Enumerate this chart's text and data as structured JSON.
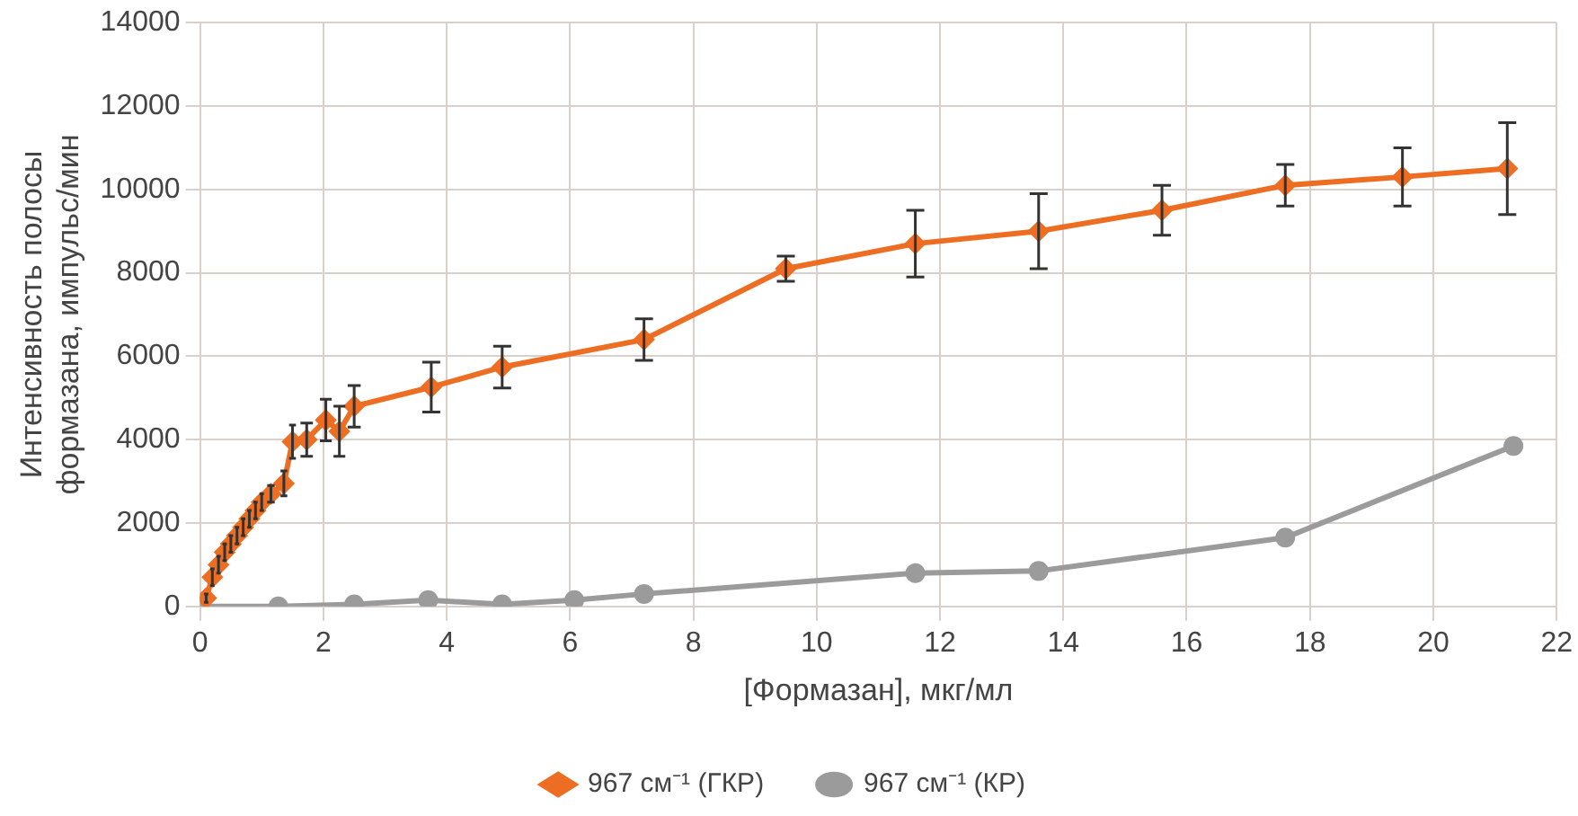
{
  "chart_data": {
    "type": "line",
    "xlabel": "[Формазан], мкг/мл",
    "ylabel": "Интенсивность полосы\nформазана, импульс/мин",
    "xlim": [
      0,
      22
    ],
    "xticks": [
      0,
      2,
      4,
      6,
      8,
      10,
      12,
      14,
      16,
      18,
      20,
      22
    ],
    "ylim": [
      0,
      14000
    ],
    "yticks": [
      0,
      2000,
      4000,
      6000,
      8000,
      10000,
      12000,
      14000
    ],
    "grid": true,
    "legend": "bottom",
    "series": [
      {
        "name": "967 см⁻¹ (ГКР)",
        "color": "#ed6d23",
        "marker": "diamond",
        "x": [
          0.1,
          0.2,
          0.3,
          0.4,
          0.5,
          0.6,
          0.7,
          0.8,
          0.9,
          1.0,
          1.15,
          1.36,
          1.5,
          1.73,
          2.04,
          2.26,
          2.5,
          3.75,
          4.9,
          7.2,
          9.5,
          11.6,
          13.6,
          15.6,
          17.6,
          19.5,
          21.2
        ],
        "values": [
          200,
          700,
          1000,
          1300,
          1500,
          1700,
          1900,
          2100,
          2300,
          2500,
          2700,
          2950,
          3950,
          4000,
          4470,
          4200,
          4800,
          5260,
          5740,
          6400,
          8100,
          8700,
          9000,
          9500,
          10100,
          10300,
          10500
        ],
        "errors": [
          100,
          200,
          200,
          200,
          200,
          200,
          200,
          200,
          200,
          200,
          200,
          300,
          400,
          400,
          500,
          600,
          500,
          600,
          500,
          500,
          300,
          800,
          900,
          600,
          500,
          700,
          1100
        ]
      },
      {
        "name": "967 см⁻¹ (КР)",
        "color": "#9b9b9b",
        "marker": "circle",
        "x": [
          0,
          1.27,
          2.5,
          3.7,
          4.9,
          6.07,
          7.2,
          11.6,
          13.6,
          17.6,
          21.3
        ],
        "values": [
          0,
          0,
          50,
          150,
          50,
          150,
          300,
          800,
          850,
          1650,
          3850
        ]
      }
    ]
  }
}
